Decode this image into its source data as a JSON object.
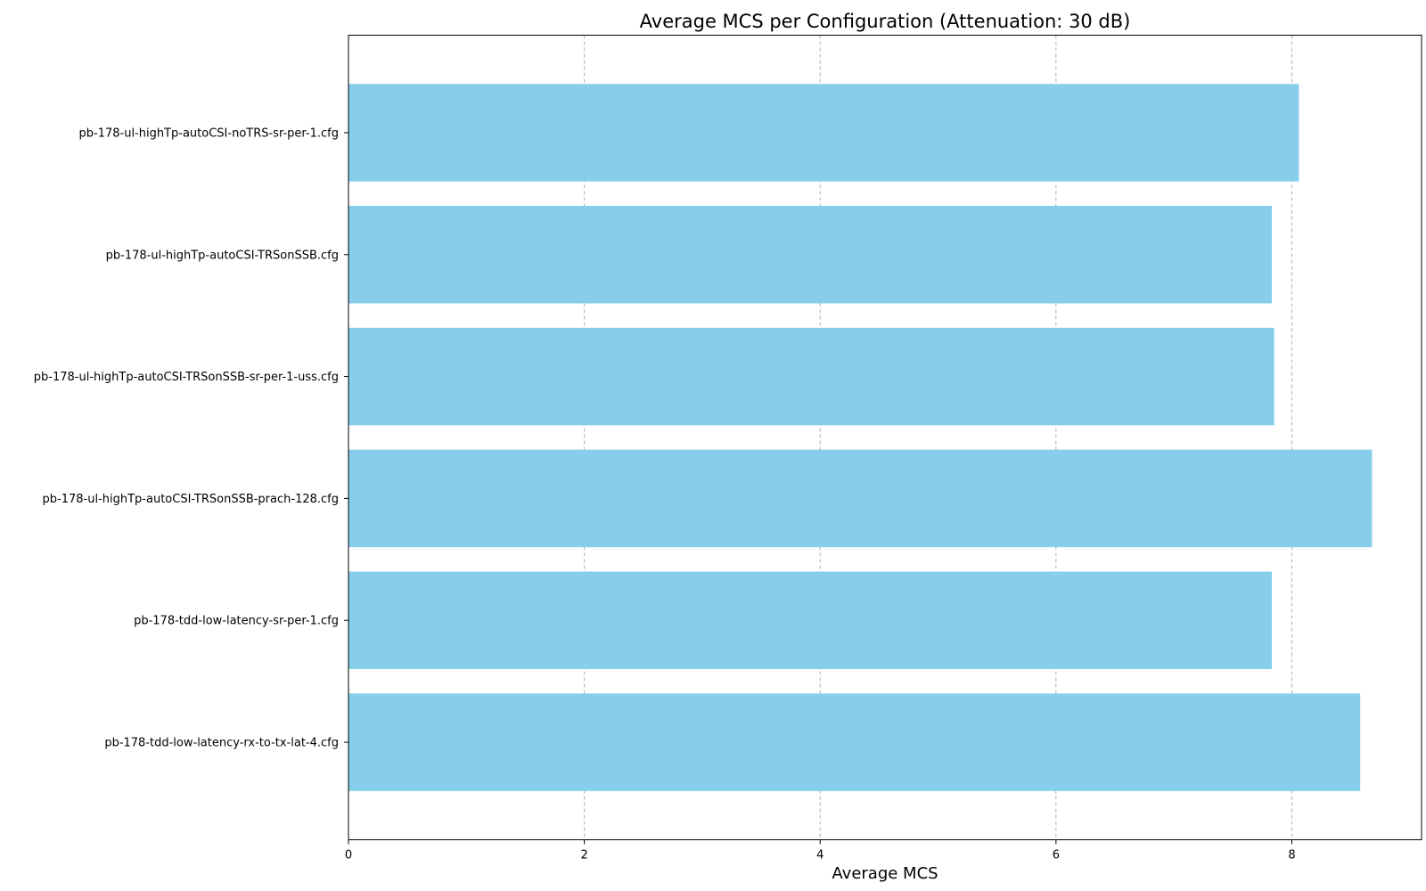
{
  "chart_data": {
    "type": "bar",
    "orientation": "horizontal",
    "title": "Average MCS per Configuration (Attenuation: 30 dB)",
    "xlabel": "Average MCS",
    "ylabel": "",
    "xlim": [
      0,
      9.1
    ],
    "xticks": [
      0,
      2,
      4,
      6,
      8
    ],
    "xtick_labels": [
      "0",
      "2",
      "4",
      "6",
      "8"
    ],
    "grid": "x, dashed",
    "bar_color": "#87CEEB",
    "categories": [
      "pb-178-ul-highTp-autoCSI-noTRS-sr-per-1.cfg",
      "pb-178-ul-highTp-autoCSI-TRSonSSB.cfg",
      "pb-178-ul-highTp-autoCSI-TRSonSSB-sr-per-1-uss.cfg",
      "pb-178-ul-highTp-autoCSI-TRSonSSB-prach-128.cfg",
      "pb-178-tdd-low-latency-sr-per-1.cfg",
      "pb-178-tdd-low-latency-rx-to-tx-lat-4.cfg"
    ],
    "values": [
      8.06,
      7.83,
      7.85,
      8.68,
      7.83,
      8.58
    ]
  }
}
